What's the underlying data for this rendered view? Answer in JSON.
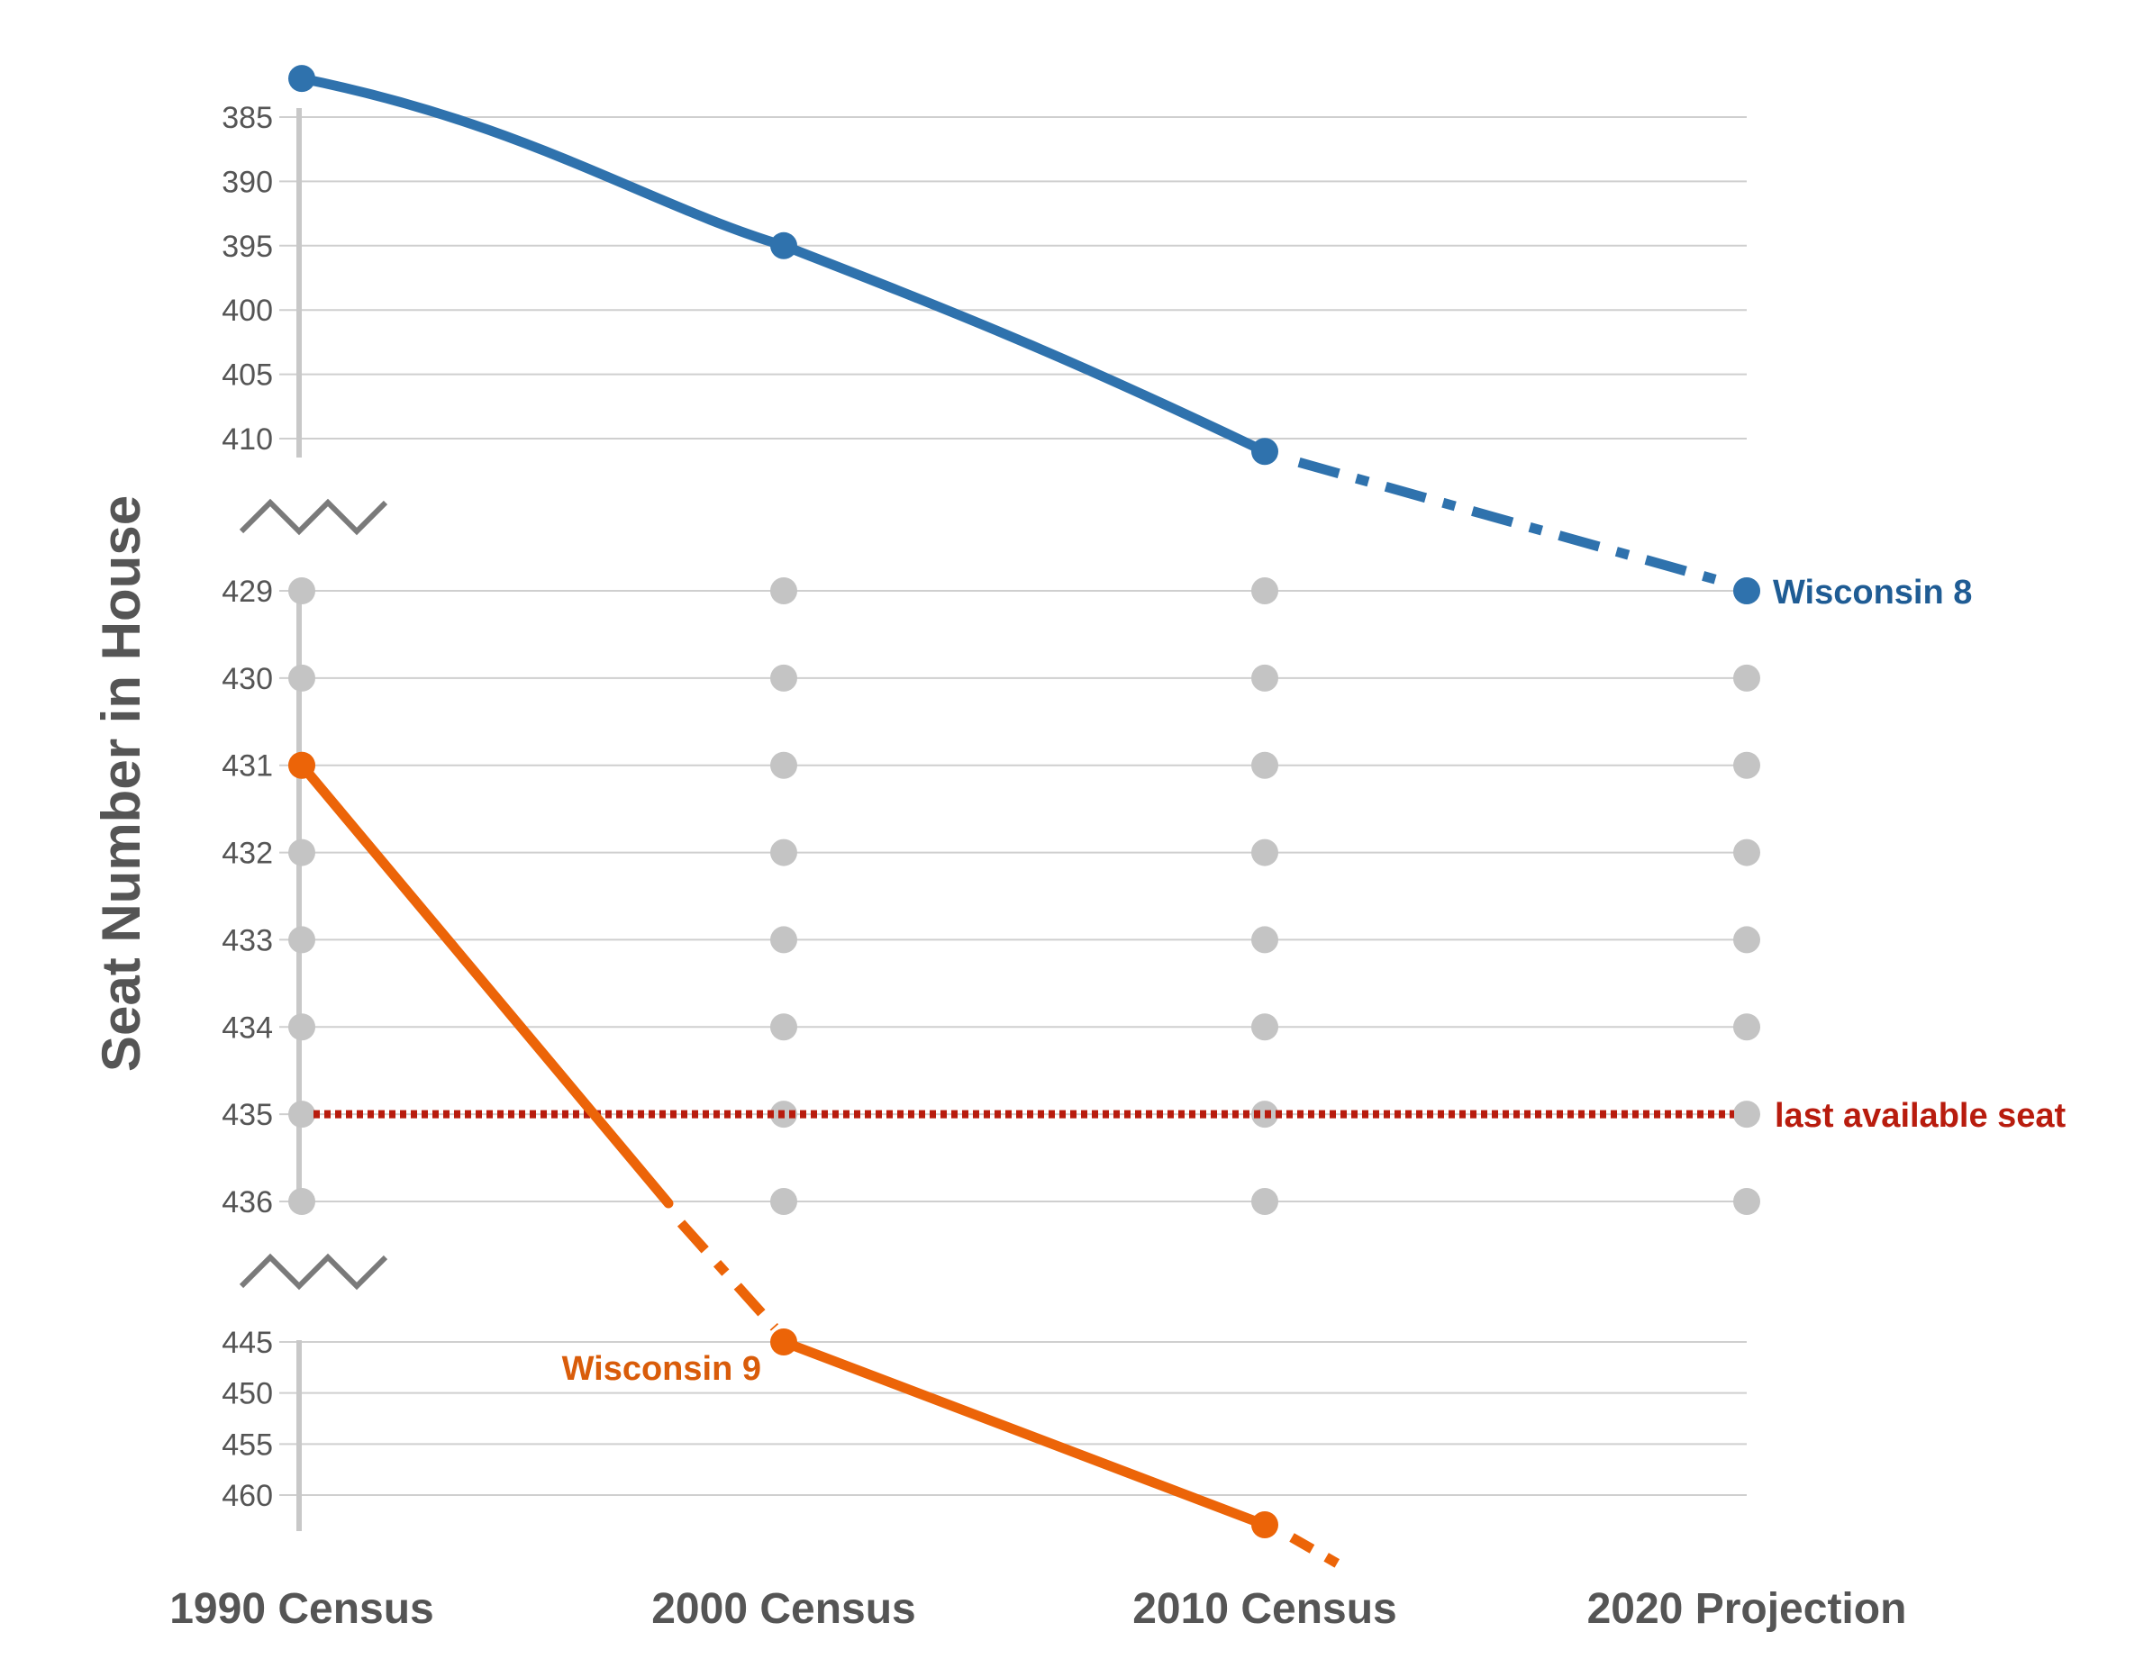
{
  "chart_data": {
    "type": "line",
    "title": "",
    "ylabel": "Seat Number in House",
    "categories": [
      "1990 Census",
      "2000 Census",
      "2010 Census",
      "2020 Projection"
    ],
    "y_axis_inverted": true,
    "y_axis_broken": true,
    "y_segments": [
      {
        "range": [
          382,
          411
        ],
        "ticks": [
          385,
          390,
          395,
          400,
          405,
          410
        ]
      },
      {
        "range": [
          429,
          436
        ],
        "ticks": [
          429,
          430,
          431,
          432,
          433,
          434,
          435,
          436
        ]
      },
      {
        "range": [
          444,
          462
        ],
        "ticks": [
          445,
          450,
          455,
          460
        ]
      }
    ],
    "series": [
      {
        "name": "Wisconsin 8",
        "color": "#2f72ad",
        "label_color": "#1f5c94",
        "values": [
          382,
          395,
          411,
          429
        ],
        "projected_from_index": 2
      },
      {
        "name": "Wisconsin 9",
        "color": "#ec6408",
        "label_color": "#d95c0a",
        "values": [
          431,
          445,
          462,
          null
        ],
        "projected_from_index": 2
      }
    ],
    "reference_line": {
      "value": 435,
      "label": "last available seat",
      "color": "#b81c0e"
    },
    "grid": true,
    "legend": "inline"
  }
}
